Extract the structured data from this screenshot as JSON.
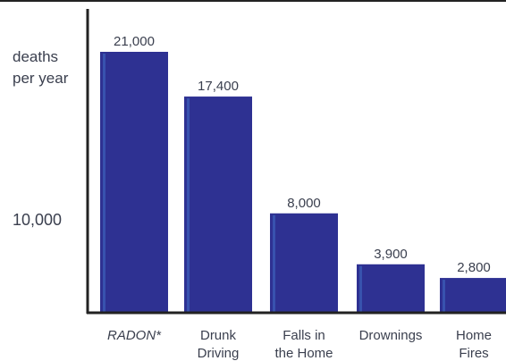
{
  "chart_data": {
    "type": "bar",
    "categories": [
      "RADON*",
      "Drunk Driving",
      "Falls in the Home",
      "Drownings",
      "Home Fires"
    ],
    "category_lines": [
      [
        "RADON*"
      ],
      [
        "Drunk",
        "Driving"
      ],
      [
        "Falls in",
        "the Home"
      ],
      [
        "Drownings"
      ],
      [
        "Home",
        "Fires"
      ]
    ],
    "values": [
      21000,
      17400,
      8000,
      3900,
      2800
    ],
    "value_labels": [
      "21,000",
      "17,400",
      "8,000",
      "3,900",
      "2,800"
    ],
    "ylabel_lines": [
      "deaths",
      "per year"
    ],
    "yticks": [
      {
        "value": 10000,
        "label": "10,000"
      }
    ],
    "ylim": [
      0,
      22000
    ],
    "bar_color": "#2e3192",
    "bar_highlight_color": "#3b5bb5",
    "axis_color": "#222222",
    "grid": false,
    "legend": "none"
  }
}
